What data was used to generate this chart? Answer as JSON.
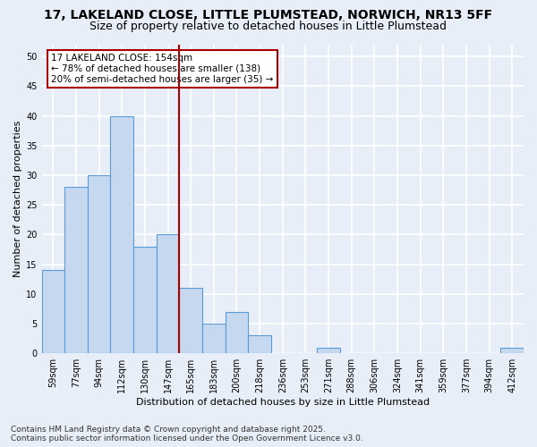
{
  "title1": "17, LAKELAND CLOSE, LITTLE PLUMSTEAD, NORWICH, NR13 5FF",
  "title2": "Size of property relative to detached houses in Little Plumstead",
  "xlabel": "Distribution of detached houses by size in Little Plumstead",
  "ylabel": "Number of detached properties",
  "bar_labels": [
    "59sqm",
    "77sqm",
    "94sqm",
    "112sqm",
    "130sqm",
    "147sqm",
    "165sqm",
    "183sqm",
    "200sqm",
    "218sqm",
    "236sqm",
    "253sqm",
    "271sqm",
    "288sqm",
    "306sqm",
    "324sqm",
    "341sqm",
    "359sqm",
    "377sqm",
    "394sqm",
    "412sqm"
  ],
  "bar_values": [
    14,
    28,
    30,
    40,
    18,
    20,
    11,
    5,
    7,
    3,
    0,
    0,
    1,
    0,
    0,
    0,
    0,
    0,
    0,
    0,
    1
  ],
  "bar_color": "#c5d8f0",
  "bar_edge_color": "#5b9bd5",
  "reference_line_x": 5.5,
  "reference_line_label": "17 LAKELAND CLOSE: 154sqm",
  "annotation_line1": "← 78% of detached houses are smaller (138)",
  "annotation_line2": "20% of semi-detached houses are larger (35) →",
  "annotation_box_color": "#ffffff",
  "annotation_box_edge_color": "#aa0000",
  "ref_line_color": "#aa0000",
  "ylim": [
    0,
    52
  ],
  "yticks": [
    0,
    5,
    10,
    15,
    20,
    25,
    30,
    35,
    40,
    45,
    50
  ],
  "footer1": "Contains HM Land Registry data © Crown copyright and database right 2025.",
  "footer2": "Contains public sector information licensed under the Open Government Licence v3.0.",
  "bg_color": "#e8eef8",
  "grid_color": "#ffffff",
  "title_fontsize": 10,
  "subtitle_fontsize": 9,
  "tick_fontsize": 7,
  "ylabel_fontsize": 8,
  "xlabel_fontsize": 8,
  "footer_fontsize": 6.5,
  "annotation_fontsize": 7.5
}
